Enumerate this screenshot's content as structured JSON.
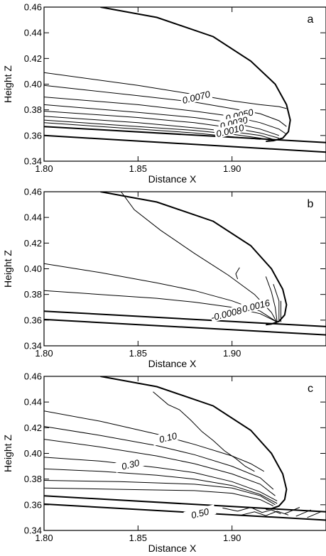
{
  "chart_data": [
    {
      "type": "line",
      "panel_label": "a",
      "xlabel": "Distance X",
      "ylabel": "Height Z",
      "xlim": [
        1.8,
        1.95
      ],
      "ylim": [
        0.34,
        0.46
      ],
      "xticks": [
        1.8,
        1.85,
        1.9
      ],
      "xtick_labels": [
        "1.80",
        "1.85",
        "1.90"
      ],
      "yticks": [
        0.34,
        0.36,
        0.38,
        0.4,
        0.42,
        0.44,
        0.46
      ],
      "ytick_labels": [
        "0.34",
        "0.36",
        "0.38",
        "0.40",
        "0.42",
        "0.44",
        "0.46"
      ],
      "boundaries": [
        {
          "x": [
            1.83,
            1.86,
            1.89,
            1.91,
            1.923,
            1.929,
            1.931,
            1.93,
            1.927,
            1.922,
            1.918
          ],
          "y": [
            0.46,
            0.452,
            0.437,
            0.418,
            0.4,
            0.384,
            0.372,
            0.363,
            0.358,
            0.356,
            0.3555
          ]
        },
        {
          "x": [
            1.8,
            1.95
          ],
          "y": [
            0.367,
            0.3545
          ]
        },
        {
          "x": [
            1.8,
            1.95
          ],
          "y": [
            0.36,
            0.347
          ]
        }
      ],
      "contours": [
        {
          "x": [
            1.8,
            1.85,
            1.88,
            1.9,
            1.915,
            1.925,
            1.929
          ],
          "y": [
            0.409,
            0.399,
            0.392,
            0.387,
            0.384,
            0.3825,
            0.381
          ]
        },
        {
          "x": [
            1.8,
            1.85,
            1.88,
            1.9,
            1.915,
            1.925,
            1.929
          ],
          "y": [
            0.399,
            0.391,
            0.386,
            0.381,
            0.377,
            0.3715,
            0.367
          ]
        },
        {
          "x": [
            1.8,
            1.85,
            1.88,
            1.9,
            1.915,
            1.925,
            1.929
          ],
          "y": [
            0.39,
            0.384,
            0.379,
            0.375,
            0.37,
            0.365,
            0.361
          ]
        },
        {
          "x": [
            1.8,
            1.85,
            1.88,
            1.9,
            1.915,
            1.925
          ],
          "y": [
            0.384,
            0.378,
            0.374,
            0.37,
            0.365,
            0.36
          ]
        },
        {
          "x": [
            1.8,
            1.85,
            1.88,
            1.9,
            1.915,
            1.925
          ],
          "y": [
            0.379,
            0.374,
            0.37,
            0.366,
            0.362,
            0.358
          ]
        },
        {
          "x": [
            1.8,
            1.85,
            1.88,
            1.9,
            1.915,
            1.922
          ],
          "y": [
            0.375,
            0.37,
            0.366,
            0.363,
            0.36,
            0.357
          ]
        },
        {
          "x": [
            1.8,
            1.85,
            1.88,
            1.9,
            1.915,
            1.92
          ],
          "y": [
            0.372,
            0.367,
            0.364,
            0.361,
            0.358,
            0.3565
          ]
        },
        {
          "x": [
            1.8,
            1.85,
            1.88,
            1.9,
            1.915
          ],
          "y": [
            0.37,
            0.365,
            0.362,
            0.359,
            0.357
          ]
        }
      ],
      "contour_labels": [
        {
          "text": "0.0070",
          "x": 1.881,
          "y": 0.3895
        },
        {
          "text": "0.0050",
          "x": 1.904,
          "y": 0.3755
        },
        {
          "text": "0.0030",
          "x": 1.901,
          "y": 0.3695
        },
        {
          "text": "0.0010",
          "x": 1.899,
          "y": 0.3635
        }
      ]
    },
    {
      "type": "line",
      "panel_label": "b",
      "xlabel": "Distance X",
      "ylabel": "Height Z",
      "xlim": [
        1.8,
        1.95
      ],
      "ylim": [
        0.34,
        0.46
      ],
      "xticks": [
        1.8,
        1.85,
        1.9
      ],
      "xtick_labels": [
        "1.80",
        "1.85",
        "1.90"
      ],
      "yticks": [
        0.34,
        0.36,
        0.38,
        0.4,
        0.42,
        0.44,
        0.46
      ],
      "ytick_labels": [
        "0.34",
        "0.36",
        "0.38",
        "0.40",
        "0.42",
        "0.44",
        "0.46"
      ],
      "boundaries": [
        {
          "x": [
            1.83,
            1.86,
            1.89,
            1.91,
            1.921,
            1.927,
            1.929,
            1.928,
            1.925,
            1.921,
            1.918
          ],
          "y": [
            0.46,
            0.452,
            0.437,
            0.418,
            0.4,
            0.384,
            0.372,
            0.364,
            0.359,
            0.357,
            0.3565
          ]
        },
        {
          "x": [
            1.8,
            1.95
          ],
          "y": [
            0.367,
            0.355
          ]
        },
        {
          "x": [
            1.8,
            1.95
          ],
          "y": [
            0.3605,
            0.3485
          ]
        }
      ],
      "contours": [
        {
          "x": [
            1.841,
            1.848,
            1.862,
            1.88,
            1.898,
            1.912,
            1.921,
            1.924
          ],
          "y": [
            0.46,
            0.446,
            0.43,
            0.412,
            0.395,
            0.38,
            0.366,
            0.358
          ]
        },
        {
          "x": [
            1.8,
            1.83,
            1.86,
            1.88,
            1.9,
            1.915,
            1.924
          ],
          "y": [
            0.404,
            0.397,
            0.389,
            0.383,
            0.375,
            0.367,
            0.3585
          ]
        },
        {
          "x": [
            1.8,
            1.83,
            1.86,
            1.88,
            1.9,
            1.915,
            1.924
          ],
          "y": [
            0.383,
            0.38,
            0.377,
            0.374,
            0.37,
            0.365,
            0.3585
          ]
        },
        {
          "x": [
            1.904,
            1.902,
            1.903
          ],
          "y": [
            0.401,
            0.396,
            0.392
          ]
        },
        {
          "x": [
            1.918,
            1.921,
            1.923,
            1.924
          ],
          "y": [
            0.394,
            0.382,
            0.37,
            0.3585
          ]
        },
        {
          "x": [
            1.922,
            1.925,
            1.925
          ],
          "y": [
            0.388,
            0.375,
            0.3585
          ]
        },
        {
          "x": [
            1.926,
            1.926
          ],
          "y": [
            0.375,
            0.3585
          ]
        }
      ],
      "contour_labels": [
        {
          "text": "-0.0016",
          "x": 1.912,
          "y": 0.3705
        },
        {
          "text": "-0.0008",
          "x": 1.897,
          "y": 0.3645
        }
      ]
    },
    {
      "type": "line",
      "panel_label": "c",
      "xlabel": "Distance X",
      "ylabel": "Height Z",
      "xlim": [
        1.8,
        1.95
      ],
      "ylim": [
        0.34,
        0.46
      ],
      "xticks": [
        1.8,
        1.85,
        1.9
      ],
      "xtick_labels": [
        "1.80",
        "1.85",
        "1.90"
      ],
      "yticks": [
        0.34,
        0.36,
        0.38,
        0.4,
        0.42,
        0.44,
        0.46
      ],
      "ytick_labels": [
        "0.34",
        "0.36",
        "0.38",
        "0.40",
        "0.42",
        "0.44",
        "0.46"
      ],
      "boundaries": [
        {
          "x": [
            1.83,
            1.86,
            1.89,
            1.91,
            1.921,
            1.927,
            1.929,
            1.928,
            1.925,
            1.921,
            1.918
          ],
          "y": [
            0.46,
            0.452,
            0.437,
            0.418,
            0.4,
            0.384,
            0.372,
            0.364,
            0.359,
            0.357,
            0.3565
          ]
        },
        {
          "x": [
            1.8,
            1.95
          ],
          "y": [
            0.367,
            0.3545
          ]
        },
        {
          "x": [
            1.8,
            1.95
          ],
          "y": [
            0.3605,
            0.348
          ]
        }
      ],
      "contours": [
        {
          "x": [
            1.858,
            1.866,
            1.872,
            1.878,
            1.884,
            1.89,
            1.896,
            1.902,
            1.907,
            1.912
          ],
          "y": [
            0.448,
            0.438,
            0.434,
            0.426,
            0.417,
            0.41,
            0.402,
            0.396,
            0.39,
            0.386
          ]
        },
        {
          "x": [
            1.8,
            1.83,
            1.86,
            1.88,
            1.9,
            1.91,
            1.917
          ],
          "y": [
            0.433,
            0.425,
            0.415,
            0.407,
            0.398,
            0.392,
            0.386
          ]
        },
        {
          "x": [
            1.8,
            1.83,
            1.86,
            1.88,
            1.9,
            1.915,
            1.922
          ],
          "y": [
            0.421,
            0.414,
            0.406,
            0.399,
            0.39,
            0.381,
            0.372
          ]
        },
        {
          "x": [
            1.8,
            1.83,
            1.86,
            1.88,
            1.9,
            1.915,
            1.923
          ],
          "y": [
            0.411,
            0.405,
            0.398,
            0.392,
            0.384,
            0.376,
            0.367
          ]
        },
        {
          "x": [
            1.8,
            1.83,
            1.86,
            1.88,
            1.9,
            1.915,
            1.924
          ],
          "y": [
            0.397,
            0.394,
            0.389,
            0.385,
            0.378,
            0.37,
            0.363
          ]
        },
        {
          "x": [
            1.8,
            1.83,
            1.86,
            1.88,
            1.9,
            1.915,
            1.924
          ],
          "y": [
            0.388,
            0.386,
            0.383,
            0.38,
            0.375,
            0.368,
            0.361
          ]
        },
        {
          "x": [
            1.8,
            1.84,
            1.88,
            1.9,
            1.915,
            1.923
          ],
          "y": [
            0.379,
            0.378,
            0.376,
            0.373,
            0.367,
            0.36
          ]
        },
        {
          "x": [
            1.8,
            1.84,
            1.88,
            1.9,
            1.915,
            1.922
          ],
          "y": [
            0.373,
            0.372,
            0.371,
            0.369,
            0.364,
            0.359
          ]
        },
        {
          "x": [
            1.895,
            1.903,
            1.91,
            1.916,
            1.921,
            1.926
          ],
          "y": [
            0.3575,
            0.355,
            0.358,
            0.354,
            0.356,
            0.353
          ]
        },
        {
          "x": [
            1.905,
            1.912,
            1.918,
            1.924,
            1.93
          ],
          "y": [
            0.352,
            0.3545,
            0.3515,
            0.355,
            0.352
          ]
        },
        {
          "x": [
            1.928,
            1.936
          ],
          "y": [
            0.353,
            0.358
          ]
        },
        {
          "x": [
            1.934,
            1.942
          ],
          "y": [
            0.351,
            0.356
          ]
        },
        {
          "x": [
            1.94,
            1.948
          ],
          "y": [
            0.35,
            0.355
          ]
        }
      ],
      "contour_labels": [
        {
          "text": "0.10",
          "x": 1.866,
          "y": 0.412
        },
        {
          "text": "0.30",
          "x": 1.846,
          "y": 0.391
        },
        {
          "text": "0.50",
          "x": 1.883,
          "y": 0.353
        }
      ]
    }
  ]
}
